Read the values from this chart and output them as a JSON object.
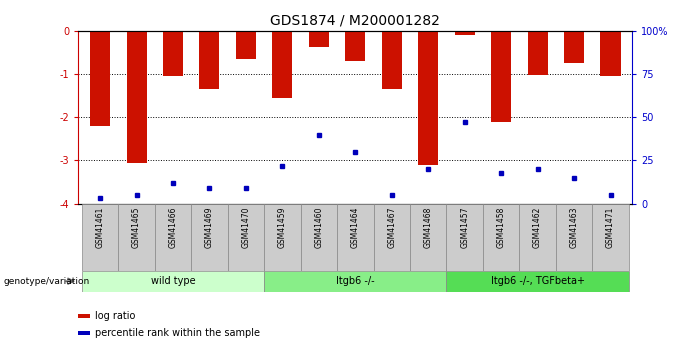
{
  "title": "GDS1874 / M200001282",
  "samples": [
    "GSM41461",
    "GSM41465",
    "GSM41466",
    "GSM41469",
    "GSM41470",
    "GSM41459",
    "GSM41460",
    "GSM41464",
    "GSM41467",
    "GSM41468",
    "GSM41457",
    "GSM41458",
    "GSM41462",
    "GSM41463",
    "GSM41471"
  ],
  "log_ratio": [
    -2.2,
    -3.05,
    -1.05,
    -1.35,
    -0.65,
    -1.55,
    -0.38,
    -0.7,
    -1.35,
    -3.1,
    -0.08,
    -2.1,
    -1.02,
    -0.75,
    -1.05
  ],
  "percentile_rank": [
    3,
    5,
    12,
    9,
    9,
    22,
    40,
    30,
    5,
    20,
    47,
    18,
    20,
    15,
    5
  ],
  "ylim_left": [
    -4,
    0
  ],
  "ylim_right": [
    0,
    100
  ],
  "groups": [
    {
      "label": "wild type",
      "start": 0,
      "end": 5,
      "color": "#ccffcc"
    },
    {
      "label": "Itgb6 -/-",
      "start": 5,
      "end": 10,
      "color": "#88ee88"
    },
    {
      "label": "Itgb6 -/-, TGFbeta+",
      "start": 10,
      "end": 15,
      "color": "#55dd55"
    }
  ],
  "bar_color": "#cc1100",
  "dot_color": "#0000bb",
  "background_color": "#ffffff",
  "plot_bg_color": "#ffffff",
  "left_axis_color": "#cc0000",
  "right_axis_color": "#0000cc",
  "left_ticks": [
    0,
    -1,
    -2,
    -3,
    -4
  ],
  "right_ticks": [
    0,
    25,
    50,
    75,
    100
  ],
  "legend_log_ratio": "log ratio",
  "legend_percentile": "percentile rank within the sample",
  "genotype_label": "genotype/variation",
  "title_fontsize": 10,
  "tick_fontsize": 7,
  "bar_width": 0.55,
  "cell_color": "#cccccc"
}
